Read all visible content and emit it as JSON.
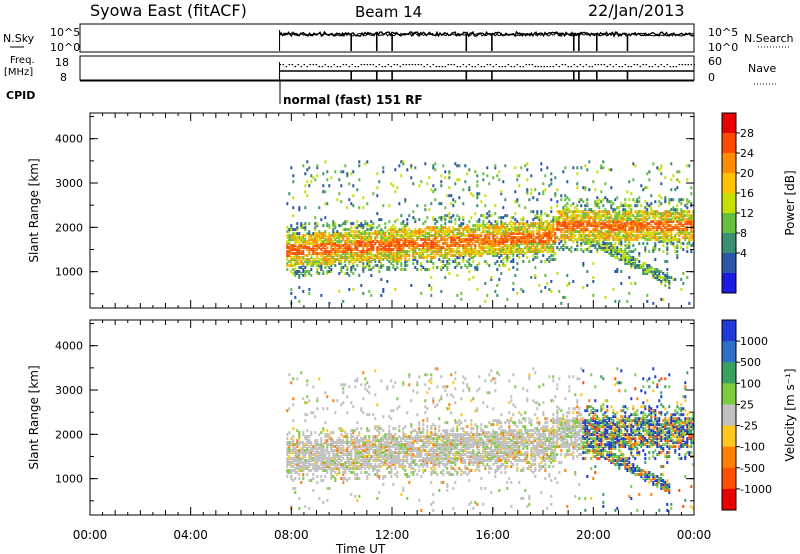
{
  "header": {
    "title": "Syowa East (fitACF)",
    "beam": "Beam 14",
    "date": "22/Jan/2013"
  },
  "noise_panel": {
    "left_label": "N.Sky",
    "right_label": "N.Search",
    "left_ticks": [
      "10^5",
      "10^0"
    ],
    "right_ticks": [
      "10^5",
      "10^0"
    ]
  },
  "freq_panel": {
    "left_label_1": "Freq.",
    "left_label_2": "[MHz]",
    "right_label": "Nave",
    "left_ticks": [
      "18",
      "8"
    ],
    "right_ticks": [
      "60",
      "0"
    ]
  },
  "cpid": {
    "label": "CPID",
    "text": "normal (fast) 151 RF"
  },
  "chart_data": [
    {
      "type": "heatmap",
      "name": "power",
      "ylabel": "Slant Range [km]",
      "yticks": [
        1000,
        2000,
        3000,
        4000
      ],
      "ylim": [
        180,
        4580
      ],
      "xticks": [
        "00:00",
        "04:00",
        "08:00",
        "12:00",
        "16:00",
        "20:00",
        "00:00"
      ],
      "xlim_hours": [
        0,
        24
      ],
      "data_start_hour": 7.8,
      "colorbar": {
        "label": "Power [dB]",
        "ticks": [
          "28",
          "24",
          "20",
          "16",
          "12",
          "8",
          "4"
        ],
        "colors": [
          "#e60000",
          "#ff4800",
          "#ff8c00",
          "#ffc000",
          "#c8e000",
          "#66c040",
          "#3a9070",
          "#2a58a8",
          "#1a1ae0"
        ]
      }
    },
    {
      "type": "heatmap",
      "name": "velocity",
      "ylabel": "Slant Range [km]",
      "yticks": [
        1000,
        2000,
        3000,
        4000
      ],
      "ylim": [
        180,
        4580
      ],
      "xticks": [
        "00:00",
        "04:00",
        "08:00",
        "12:00",
        "16:00",
        "20:00",
        "00:00"
      ],
      "xlabel": "Time UT",
      "xlim_hours": [
        0,
        24
      ],
      "data_start_hour": 7.8,
      "colorbar": {
        "label": "Velocity [m s⁻¹]",
        "ticks": [
          "1000",
          "500",
          "100",
          "25",
          "-25",
          "-100",
          "-500",
          "-1000"
        ],
        "colors": [
          "#1f3ad8",
          "#2e6fc8",
          "#3aa060",
          "#7ccc40",
          "#c0c0c0",
          "#ffc820",
          "#ff8000",
          "#ff5000",
          "#e80000"
        ]
      }
    }
  ]
}
